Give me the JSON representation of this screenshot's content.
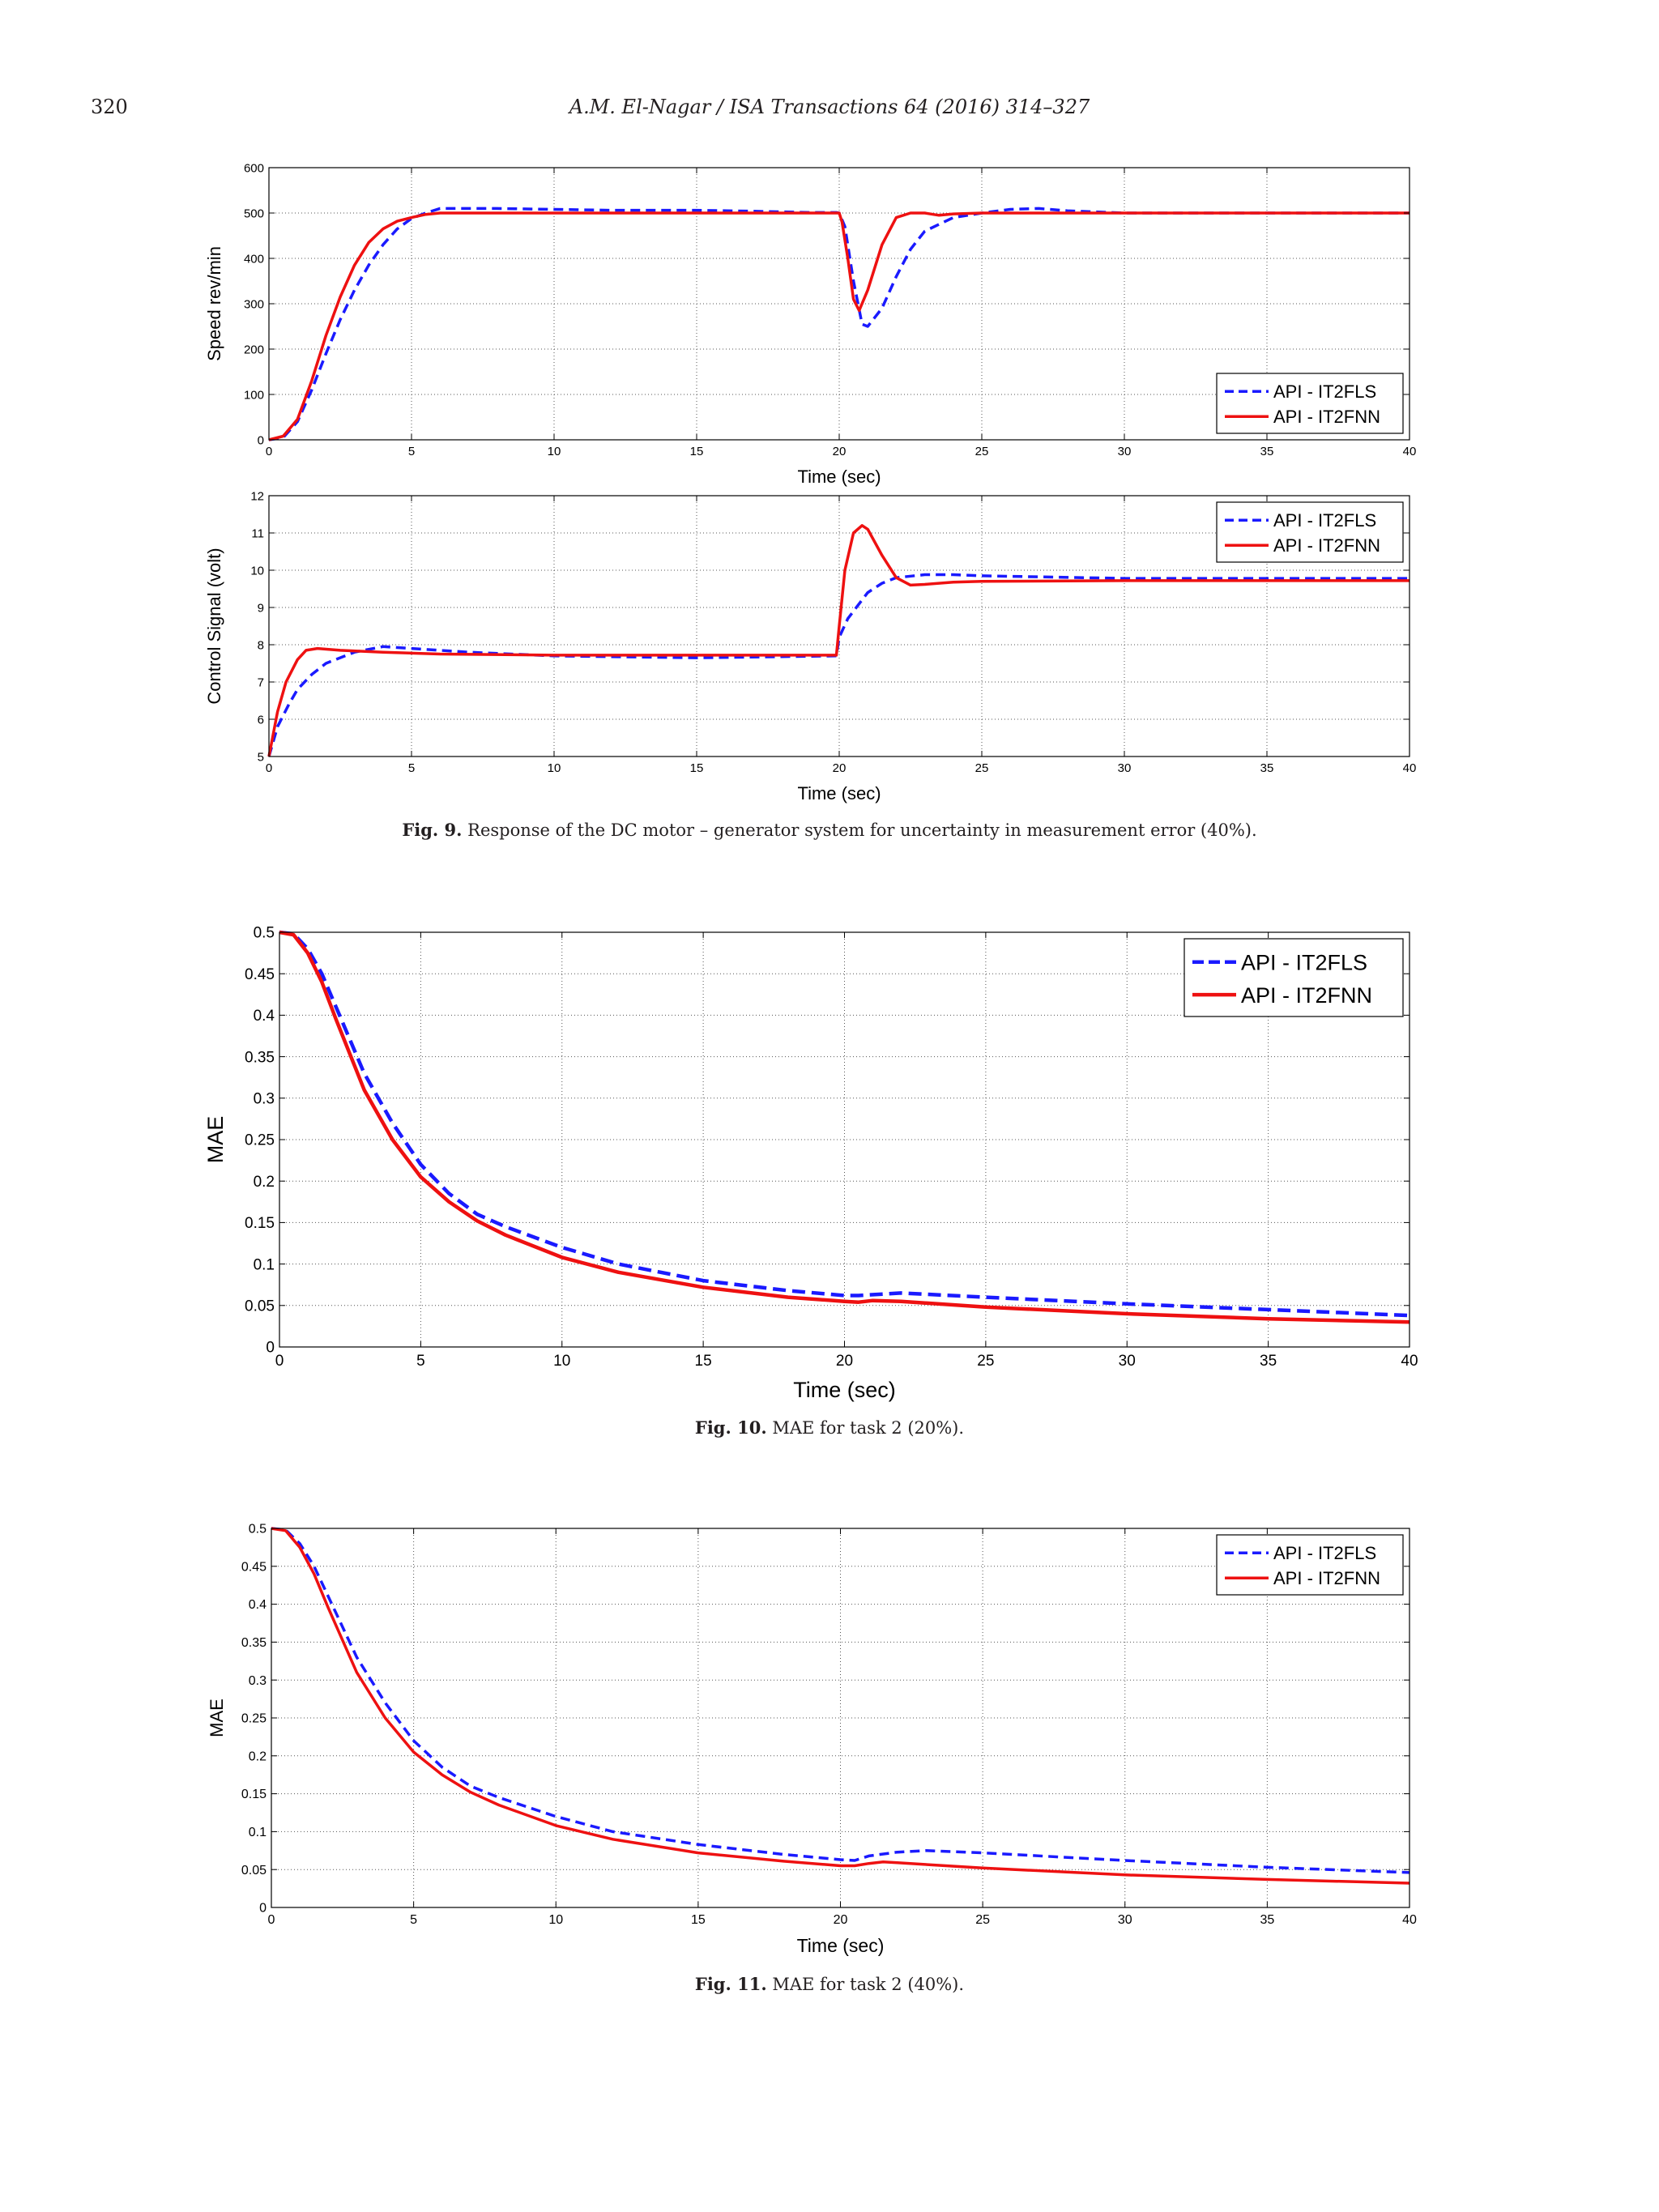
{
  "header": {
    "page_number": "320",
    "journal": "A.M. El-Nagar / ISA Transactions 64 (2016) 314–327"
  },
  "figures": [
    {
      "label": "Fig. 9.",
      "text": "Response of the DC motor – generator system for uncertainty in measurement error (40%)."
    },
    {
      "label": "Fig. 10.",
      "text": "MAE for task 2 (20%)."
    },
    {
      "label": "Fig. 11.",
      "text": "MAE for task 2 (40%)."
    }
  ],
  "colors": {
    "it2fls": "#1a1aff",
    "it2fnn": "#ee1111"
  },
  "chart_data": [
    {
      "type": "line",
      "xlabel": "Time (sec)",
      "ylabel": "Speed rev/min",
      "xlim": [
        0,
        40
      ],
      "ylim": [
        0,
        600
      ],
      "xticks": [
        0,
        5,
        10,
        15,
        20,
        25,
        30,
        35,
        40
      ],
      "yticks": [
        0,
        100,
        200,
        300,
        400,
        500,
        600
      ],
      "grid": true,
      "legend": "bottom-right",
      "series": [
        {
          "name": "API - IT2FLS",
          "style": "dashed",
          "color": "#1a1aff",
          "x": [
            0,
            0.5,
            1,
            1.5,
            2,
            2.5,
            3,
            3.5,
            4,
            4.5,
            5,
            5.5,
            6,
            6.5,
            8,
            10,
            12,
            15,
            17,
            19,
            19.9,
            20,
            20.2,
            20.5,
            20.8,
            21,
            21.5,
            22,
            22.5,
            23,
            24,
            25,
            26,
            27,
            28,
            30,
            35,
            40
          ],
          "y": [
            0,
            5,
            40,
            110,
            190,
            265,
            330,
            385,
            430,
            465,
            488,
            500,
            510,
            510,
            510,
            508,
            506,
            506,
            504,
            501,
            501,
            500,
            470,
            350,
            255,
            250,
            290,
            360,
            420,
            460,
            490,
            500,
            508,
            510,
            505,
            500,
            500,
            500
          ]
        },
        {
          "name": "API - IT2FNN",
          "style": "solid",
          "color": "#ee1111",
          "x": [
            0,
            0.5,
            1,
            1.5,
            2,
            2.5,
            3,
            3.5,
            4,
            4.5,
            5,
            5.5,
            6,
            8,
            10,
            15,
            19.9,
            20,
            20.1,
            20.3,
            20.5,
            20.7,
            21,
            21.5,
            22,
            22.5,
            23,
            23.5,
            24,
            25,
            30,
            40
          ],
          "y": [
            0,
            8,
            45,
            130,
            230,
            315,
            385,
            435,
            465,
            482,
            490,
            497,
            500,
            500,
            500,
            500,
            500,
            500,
            480,
            400,
            310,
            285,
            330,
            430,
            490,
            500,
            500,
            495,
            498,
            500,
            500,
            500
          ]
        }
      ]
    },
    {
      "type": "line",
      "xlabel": "Time (sec)",
      "ylabel": "Control Signal (volt)",
      "xlim": [
        0,
        40
      ],
      "ylim": [
        5,
        12
      ],
      "xticks": [
        0,
        5,
        10,
        15,
        20,
        25,
        30,
        35,
        40
      ],
      "yticks": [
        5,
        6,
        7,
        8,
        9,
        10,
        11,
        12
      ],
      "grid": true,
      "legend": "top-right",
      "series": [
        {
          "name": "API - IT2FLS",
          "style": "dashed",
          "color": "#1a1aff",
          "x": [
            0,
            0.3,
            0.7,
            1,
            1.5,
            2,
            3,
            4,
            5,
            7,
            10,
            15,
            19.9,
            20,
            20.3,
            20.7,
            21,
            21.5,
            22,
            23,
            24,
            25,
            30,
            40
          ],
          "y": [
            5,
            5.8,
            6.4,
            6.8,
            7.2,
            7.5,
            7.8,
            7.95,
            7.9,
            7.8,
            7.7,
            7.65,
            7.7,
            8.2,
            8.7,
            9.1,
            9.4,
            9.65,
            9.8,
            9.88,
            9.88,
            9.85,
            9.78,
            9.78
          ]
        },
        {
          "name": "API - IT2FNN",
          "style": "solid",
          "color": "#ee1111",
          "x": [
            0,
            0.3,
            0.6,
            1,
            1.3,
            1.7,
            2.5,
            4,
            6,
            10,
            15,
            19.9,
            20,
            20.2,
            20.5,
            20.8,
            21,
            21.5,
            22,
            22.5,
            23,
            24,
            25,
            30,
            40
          ],
          "y": [
            5,
            6.2,
            7,
            7.6,
            7.85,
            7.9,
            7.85,
            7.8,
            7.75,
            7.72,
            7.72,
            7.72,
            8.5,
            10,
            11,
            11.2,
            11.1,
            10.4,
            9.8,
            9.6,
            9.62,
            9.68,
            9.7,
            9.72,
            9.72
          ]
        }
      ]
    },
    {
      "type": "line",
      "xlabel": "Time (sec)",
      "ylabel": "MAE",
      "xlim": [
        0,
        40
      ],
      "ylim": [
        0,
        0.5
      ],
      "xticks": [
        0,
        5,
        10,
        15,
        20,
        25,
        30,
        35,
        40
      ],
      "yticks": [
        0,
        0.05,
        0.1,
        0.15,
        0.2,
        0.25,
        0.3,
        0.35,
        0.4,
        0.45,
        0.5
      ],
      "grid": true,
      "legend": "top-right",
      "series": [
        {
          "name": "API - IT2FLS",
          "style": "dashed",
          "color": "#1a1aff",
          "x": [
            0,
            0.5,
            1,
            1.5,
            2,
            3,
            4,
            5,
            6,
            7,
            8,
            10,
            12,
            15,
            18,
            20,
            20.5,
            22,
            25,
            30,
            35,
            40
          ],
          "y": [
            0.5,
            0.498,
            0.48,
            0.45,
            0.41,
            0.33,
            0.27,
            0.22,
            0.185,
            0.16,
            0.145,
            0.12,
            0.1,
            0.08,
            0.068,
            0.062,
            0.062,
            0.065,
            0.06,
            0.052,
            0.045,
            0.038
          ]
        },
        {
          "name": "API - IT2FNN",
          "style": "solid",
          "color": "#ee1111",
          "x": [
            0,
            0.5,
            1,
            1.5,
            2,
            3,
            4,
            5,
            6,
            7,
            8,
            10,
            12,
            15,
            18,
            20,
            20.5,
            21,
            22,
            25,
            30,
            35,
            40
          ],
          "y": [
            0.5,
            0.497,
            0.475,
            0.44,
            0.395,
            0.31,
            0.25,
            0.205,
            0.175,
            0.152,
            0.135,
            0.108,
            0.09,
            0.072,
            0.06,
            0.055,
            0.054,
            0.056,
            0.055,
            0.048,
            0.04,
            0.034,
            0.03
          ]
        }
      ]
    },
    {
      "type": "line",
      "xlabel": "Time (sec)",
      "ylabel": "MAE",
      "xlim": [
        0,
        40
      ],
      "ylim": [
        0,
        0.5
      ],
      "xticks": [
        0,
        5,
        10,
        15,
        20,
        25,
        30,
        35,
        40
      ],
      "yticks": [
        0,
        0.05,
        0.1,
        0.15,
        0.2,
        0.25,
        0.3,
        0.35,
        0.4,
        0.45,
        0.5
      ],
      "grid": true,
      "legend": "top-right",
      "series": [
        {
          "name": "API - IT2FLS",
          "style": "dashed",
          "color": "#1a1aff",
          "x": [
            0,
            0.5,
            1,
            1.5,
            2,
            3,
            4,
            5,
            6,
            7,
            8,
            10,
            12,
            15,
            18,
            20,
            20.5,
            21,
            22,
            23,
            25,
            30,
            35,
            40
          ],
          "y": [
            0.5,
            0.498,
            0.48,
            0.45,
            0.41,
            0.33,
            0.27,
            0.22,
            0.185,
            0.16,
            0.145,
            0.12,
            0.1,
            0.083,
            0.07,
            0.063,
            0.062,
            0.068,
            0.073,
            0.075,
            0.072,
            0.062,
            0.053,
            0.046
          ]
        },
        {
          "name": "API - IT2FNN",
          "style": "solid",
          "color": "#ee1111",
          "x": [
            0,
            0.5,
            1,
            1.5,
            2,
            3,
            4,
            5,
            6,
            7,
            8,
            10,
            12,
            15,
            18,
            20,
            20.5,
            21,
            21.5,
            22,
            25,
            30,
            35,
            40
          ],
          "y": [
            0.5,
            0.497,
            0.475,
            0.44,
            0.395,
            0.31,
            0.25,
            0.205,
            0.175,
            0.152,
            0.135,
            0.108,
            0.09,
            0.072,
            0.061,
            0.055,
            0.055,
            0.058,
            0.06,
            0.059,
            0.052,
            0.043,
            0.037,
            0.032
          ]
        }
      ]
    }
  ]
}
